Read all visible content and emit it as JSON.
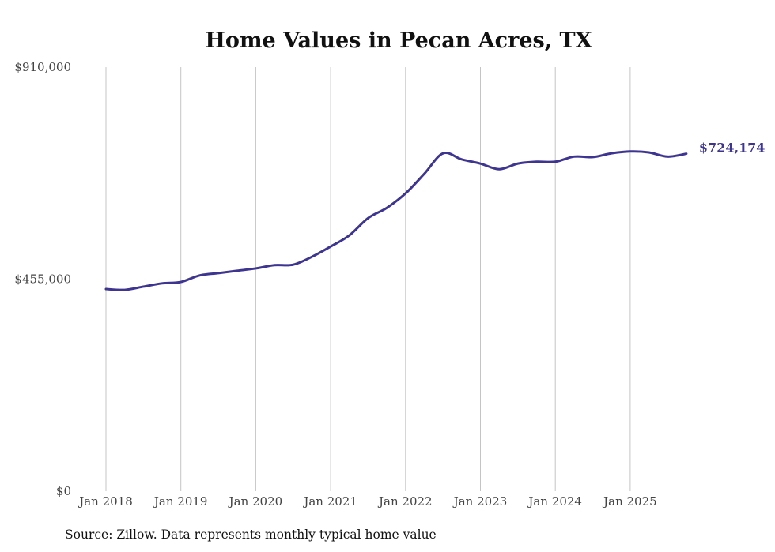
{
  "chart_data": {
    "type": "line",
    "title": "Home Values in Pecan Acres, TX",
    "xlabel": "",
    "ylabel": "",
    "ylim": [
      0,
      910000
    ],
    "yticks": [
      0,
      455000,
      910000
    ],
    "ytick_labels": [
      "$0",
      "$455,000",
      "$910,000"
    ],
    "xticks": [
      2018,
      2019,
      2020,
      2021,
      2022,
      2023,
      2024,
      2025
    ],
    "xtick_labels": [
      "Jan 2018",
      "Jan 2019",
      "Jan 2020",
      "Jan 2021",
      "Jan 2022",
      "Jan 2023",
      "Jan 2024",
      "Jan 2025"
    ],
    "grid": "vertical",
    "series": [
      {
        "name": "Typical home value",
        "color": "#3d3590",
        "x": [
          2018.0,
          2018.25,
          2018.5,
          2018.75,
          2019.0,
          2019.25,
          2019.5,
          2019.75,
          2020.0,
          2020.25,
          2020.5,
          2020.75,
          2021.0,
          2021.25,
          2021.5,
          2021.75,
          2022.0,
          2022.25,
          2022.5,
          2022.75,
          2023.0,
          2023.25,
          2023.5,
          2023.75,
          2024.0,
          2024.25,
          2024.5,
          2024.75,
          2025.0,
          2025.25,
          2025.5,
          2025.75
        ],
        "values": [
          433800,
          432000,
          439000,
          446000,
          449000,
          463000,
          468000,
          473000,
          478000,
          485000,
          486000,
          503000,
          525000,
          549000,
          586000,
          608000,
          639000,
          681000,
          725000,
          712000,
          703000,
          691000,
          703000,
          707000,
          707000,
          718000,
          717000,
          725000,
          729000,
          727000,
          718000,
          724174
        ]
      }
    ],
    "end_label": "$724,174"
  },
  "source": "Source: Zillow. Data represents monthly typical home value"
}
